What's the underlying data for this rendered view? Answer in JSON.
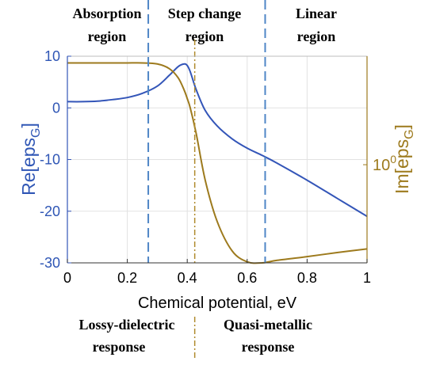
{
  "colors": {
    "re_series": "#3355b8",
    "im_series": "#9d7a1d",
    "region_divider": "#4f86c6",
    "response_divider": "#b08b2d",
    "grid": "#e2e2e2",
    "axis_left": "#3355b8",
    "axis_right": "#9d7a1d"
  },
  "annotations": {
    "top": {
      "absorption": [
        "Absorption",
        "region"
      ],
      "step": [
        "Step change",
        "region"
      ],
      "linear": [
        "Linear",
        "region"
      ]
    },
    "bottom": {
      "lossy": [
        "Lossy-dielectric",
        "response"
      ],
      "quasi": [
        "Quasi-metallic",
        "response"
      ]
    }
  },
  "axes": {
    "xlabel": "Chemical potential, eV",
    "ylabel_left": "Re[eps",
    "ylabel_left_sub": "G",
    "ylabel_left_end": "]",
    "ylabel_right": "Im[eps",
    "ylabel_right_sub": "G",
    "ylabel_right_end": "]",
    "right_tick_base": "10",
    "right_tick_exp": "0"
  },
  "chart_data": {
    "type": "line",
    "x": [
      0,
      0.05,
      0.1,
      0.15,
      0.2,
      0.25,
      0.3,
      0.34,
      0.37,
      0.39,
      0.4,
      0.41,
      0.43,
      0.46,
      0.5,
      0.55,
      0.6,
      0.65,
      0.7,
      0.8,
      0.9,
      1.0
    ],
    "xlim": [
      0,
      1
    ],
    "xticks": [
      "0",
      "0.2",
      "0.4",
      "0.6",
      "0.8",
      "1"
    ],
    "xlabel": "Chemical potential, eV",
    "ylim_left": [
      -30,
      10
    ],
    "yticks_left": [
      "10",
      "0",
      "-10",
      "-20",
      "-30"
    ],
    "series": [
      {
        "name": "Re[epsG]",
        "axis": "left",
        "values": [
          1.2,
          1.2,
          1.3,
          1.6,
          2.0,
          2.8,
          4.2,
          6.3,
          8.0,
          8.5,
          8.2,
          7.0,
          3.5,
          -0.5,
          -3.5,
          -6.0,
          -7.8,
          -9.2,
          -10.7,
          -14.0,
          -17.5,
          -21.0
        ]
      },
      {
        "name": "Im[epsG]",
        "axis": "right",
        "values_on_left_scale": [
          8.7,
          8.7,
          8.7,
          8.7,
          8.7,
          8.7,
          8.5,
          7.6,
          5.8,
          3.4,
          1.8,
          0.0,
          -5.0,
          -14.0,
          -22.0,
          -27.7,
          -29.8,
          -30.0,
          -29.5,
          -28.8,
          -28.0,
          -27.3
        ]
      }
    ],
    "vlines": [
      {
        "x": 0.27,
        "style": "dashed",
        "role": "region-boundary"
      },
      {
        "x": 0.66,
        "style": "dashed",
        "role": "region-boundary"
      },
      {
        "x": 0.425,
        "style": "dash-dot",
        "role": "response-boundary"
      }
    ],
    "right_axis_tick": {
      "label": "10^0",
      "at_left_value": -11
    },
    "grid": true,
    "legend": "none"
  }
}
